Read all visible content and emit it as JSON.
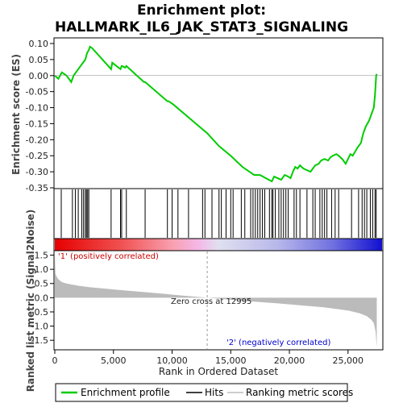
{
  "chart_data": {
    "type": "line",
    "title_line1": "Enrichment plot:",
    "title_line2": "HALLMARK_IL6_JAK_STAT3_SIGNALING",
    "xlabel": "Rank in Ordered Dataset",
    "top_panel": {
      "ylabel": "Enrichment score (ES)",
      "ylim": [
        -0.35,
        0.11
      ],
      "yticks": [
        "0.10",
        "0.05",
        "0.00",
        "-0.05",
        "-0.10",
        "-0.15",
        "-0.20",
        "-0.25",
        "-0.30",
        "-0.35"
      ],
      "ytick_values": [
        0.1,
        0.05,
        0.0,
        -0.05,
        -0.1,
        -0.15,
        -0.2,
        -0.25,
        -0.3,
        -0.35
      ],
      "series": [
        {
          "name": "Enrichment profile",
          "color": "#00cc00",
          "x": [
            0,
            300,
            600,
            1000,
            1400,
            1600,
            1800,
            2000,
            2200,
            2400,
            2600,
            2750,
            2900,
            3000,
            3200,
            4800,
            4900,
            5600,
            5700,
            6000,
            6100,
            7600,
            7700,
            9600,
            9700,
            10100,
            13000,
            14000,
            15000,
            16000,
            17000,
            17500,
            18000,
            18500,
            18700,
            19000,
            19300,
            19600,
            19900,
            20100,
            20300,
            20500,
            20700,
            20900,
            21200,
            21500,
            21800,
            22000,
            22200,
            22500,
            22700,
            23000,
            23300,
            23500,
            23700,
            24000,
            24200,
            24500,
            24800,
            25200,
            25400,
            25800,
            26100,
            26300,
            26500,
            26800,
            27000,
            27200,
            27300,
            27400,
            27450
          ],
          "y": [
            0.0,
            -0.01,
            0.01,
            0.0,
            -0.02,
            0.0,
            0.01,
            0.02,
            0.03,
            0.04,
            0.05,
            0.07,
            0.08,
            0.09,
            0.085,
            0.02,
            0.04,
            0.02,
            0.03,
            0.025,
            0.03,
            -0.02,
            -0.02,
            -0.08,
            -0.08,
            -0.09,
            -0.18,
            -0.22,
            -0.25,
            -0.285,
            -0.31,
            -0.31,
            -0.32,
            -0.33,
            -0.315,
            -0.32,
            -0.325,
            -0.31,
            -0.315,
            -0.32,
            -0.3,
            -0.285,
            -0.29,
            -0.28,
            -0.29,
            -0.295,
            -0.3,
            -0.29,
            -0.28,
            -0.275,
            -0.265,
            -0.26,
            -0.265,
            -0.255,
            -0.25,
            -0.245,
            -0.25,
            -0.26,
            -0.275,
            -0.245,
            -0.25,
            -0.225,
            -0.21,
            -0.18,
            -0.16,
            -0.14,
            -0.12,
            -0.1,
            -0.06,
            0.0,
            0.005
          ]
        }
      ]
    },
    "hits_panel": {
      "color": "#000000",
      "hit_ranks": [
        550,
        1500,
        1750,
        2000,
        2300,
        2450,
        2600,
        2700,
        2800,
        2900,
        4800,
        5600,
        5700,
        6100,
        7700,
        9600,
        10000,
        10500,
        11400,
        12600,
        12800,
        13400,
        14000,
        14200,
        14600,
        15000,
        15200,
        15900,
        16200,
        16700,
        16900,
        17100,
        17300,
        17500,
        17700,
        17900,
        18300,
        18500,
        18600,
        18800,
        19100,
        19300,
        19500,
        19700,
        19900,
        20400,
        20600,
        20900,
        21500,
        22000,
        22200,
        22600,
        22800,
        23000,
        23200,
        23600,
        23900,
        24200,
        25300,
        25900,
        26200,
        26400,
        26600,
        26900,
        27100,
        27300,
        27400
      ]
    },
    "bar_panel": {
      "gradient_stops": [
        "#e60000",
        "#f58080",
        "#f8b0e0",
        "#d8d8f0",
        "#9090e8",
        "#1a1ad8"
      ]
    },
    "bottom_panel": {
      "ylabel": "Ranked list metric (Signal2Noise)",
      "ylim": [
        -1.75,
        1.6
      ],
      "yticks": [
        "1.5",
        "1.0",
        "0.5",
        "0.0",
        "-0.5",
        "-1.0",
        "-1.5"
      ],
      "ytick_values": [
        1.5,
        1.0,
        0.5,
        0.0,
        -0.5,
        -1.0,
        -1.5
      ],
      "metric_x": [
        0,
        50,
        150,
        300,
        600,
        1000,
        2000,
        3000,
        5000,
        7000,
        9000,
        11000,
        12995,
        15000,
        17000,
        19000,
        21000,
        23000,
        25000,
        26000,
        26600,
        27000,
        27200,
        27350,
        27450
      ],
      "metric_y": [
        1.55,
        0.85,
        0.75,
        0.65,
        0.55,
        0.5,
        0.42,
        0.37,
        0.29,
        0.22,
        0.15,
        0.07,
        0.0,
        -0.07,
        -0.14,
        -0.2,
        -0.27,
        -0.34,
        -0.45,
        -0.55,
        -0.65,
        -0.78,
        -0.9,
        -1.2,
        -1.75
      ],
      "fill_color": "#bbbbbb",
      "annotations": {
        "pos_label": "'1' (positively correlated)",
        "neg_label": "'2' (negatively correlated)",
        "zero_cross": "Zero cross at 12995"
      },
      "zero_cross_rank": 12995
    },
    "x_axis": {
      "xlim": [
        0,
        27900
      ],
      "ticks": [
        "0",
        "5,000",
        "10,000",
        "15,000",
        "20,000",
        "25,000"
      ],
      "tick_values": [
        0,
        5000,
        10000,
        15000,
        20000,
        25000
      ]
    },
    "legend": {
      "items": [
        {
          "label": "Enrichment profile",
          "color": "#00cc00"
        },
        {
          "label": "Hits",
          "color": "#000000"
        },
        {
          "label": "Ranking metric scores",
          "color": "#bbbbbb"
        }
      ]
    }
  }
}
